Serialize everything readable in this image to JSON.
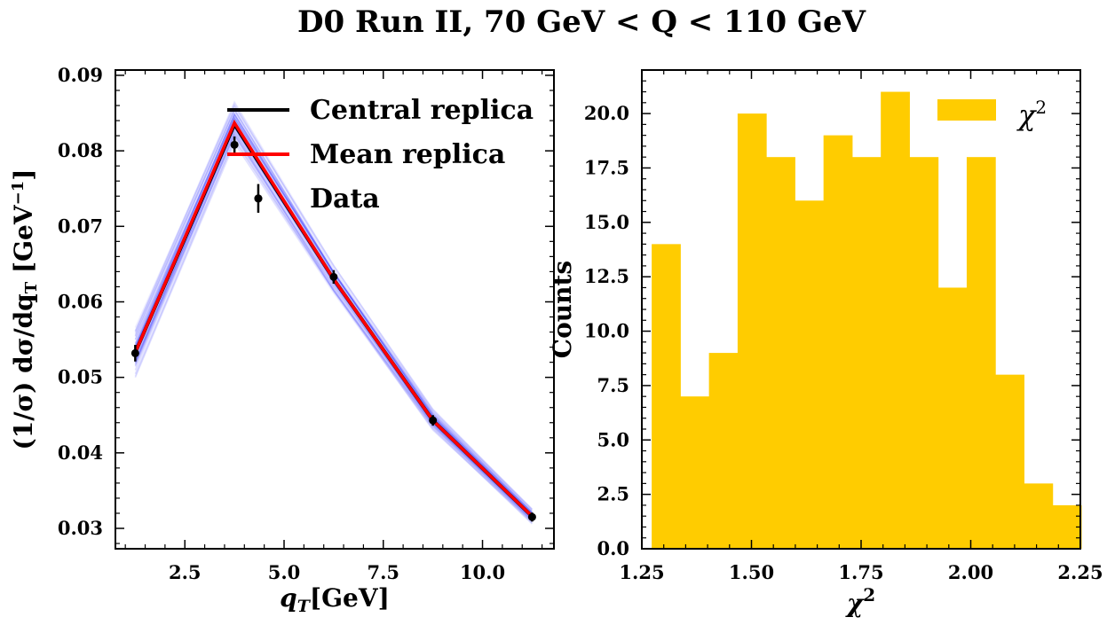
{
  "figure": {
    "title": "D0 Run II, 70 GeV < Q < 110 GeV"
  },
  "chart_data": [
    {
      "type": "line",
      "xlabel": "q_T [GeV]",
      "ylabel": "(1/σ) dσ/dq_T [GeV^-1]",
      "xlim": [
        0.75,
        11.8
      ],
      "ylim": [
        0.0273,
        0.0907
      ],
      "xticks": [
        "2.5",
        "5.0",
        "7.5",
        "10.0"
      ],
      "yticks": [
        "0.03",
        "0.04",
        "0.05",
        "0.06",
        "0.07",
        "0.08",
        "0.09"
      ],
      "x": [
        1.25,
        3.75,
        6.25,
        8.75,
        11.25
      ],
      "series": [
        {
          "name": "Central replica",
          "color": "#000000",
          "values": [
            0.0533,
            0.0835,
            0.063,
            0.0443,
            0.0316
          ]
        },
        {
          "name": "Mean replica",
          "color": "#ff0000",
          "values": [
            0.0533,
            0.0837,
            0.063,
            0.0443,
            0.0316
          ]
        }
      ],
      "replica_band": {
        "color": "#3333ff",
        "lower": [
          0.05,
          0.081,
          0.061,
          0.043,
          0.0306
        ],
        "upper": [
          0.0566,
          0.0865,
          0.0648,
          0.0458,
          0.0326
        ]
      },
      "data": {
        "name": "Data",
        "x": [
          1.25,
          3.75,
          4.35,
          6.25,
          8.75,
          11.25
        ],
        "y": [
          0.0532,
          0.0808,
          0.0737,
          0.0633,
          0.0443,
          0.0315
        ],
        "yerr": [
          0.0011,
          0.0011,
          0.0019,
          0.0009,
          0.0007,
          0.0006
        ]
      },
      "legend": {
        "position": "top-right",
        "entries": [
          "Central replica",
          "Mean replica",
          "Data"
        ]
      },
      "grid": false
    },
    {
      "type": "bar",
      "subtype": "histogram",
      "xlabel": "χ²",
      "ylabel": "Counts",
      "xlim": [
        1.25,
        2.25
      ],
      "ylim": [
        0,
        22
      ],
      "xticks": [
        "1.25",
        "1.50",
        "1.75",
        "2.00",
        "2.25"
      ],
      "yticks": [
        "0.0",
        "2.5",
        "5.0",
        "7.5",
        "10.0",
        "12.5",
        "15.0",
        "17.5",
        "20.0"
      ],
      "bin_edges": [
        1.2725,
        1.3378,
        1.4031,
        1.4684,
        1.5337,
        1.599,
        1.6643,
        1.7296,
        1.7949,
        1.8602,
        1.9255,
        1.9908,
        2.0561,
        2.1214,
        2.1867,
        2.252
      ],
      "values": [
        14,
        7,
        9,
        20,
        18,
        16,
        19,
        18,
        21,
        18,
        12,
        18,
        8,
        3,
        2
      ],
      "series": [
        {
          "name": "χ²",
          "color": "#ffcc00"
        }
      ],
      "legend": {
        "position": "top-right",
        "entries": [
          "χ²"
        ]
      },
      "grid": false
    }
  ]
}
